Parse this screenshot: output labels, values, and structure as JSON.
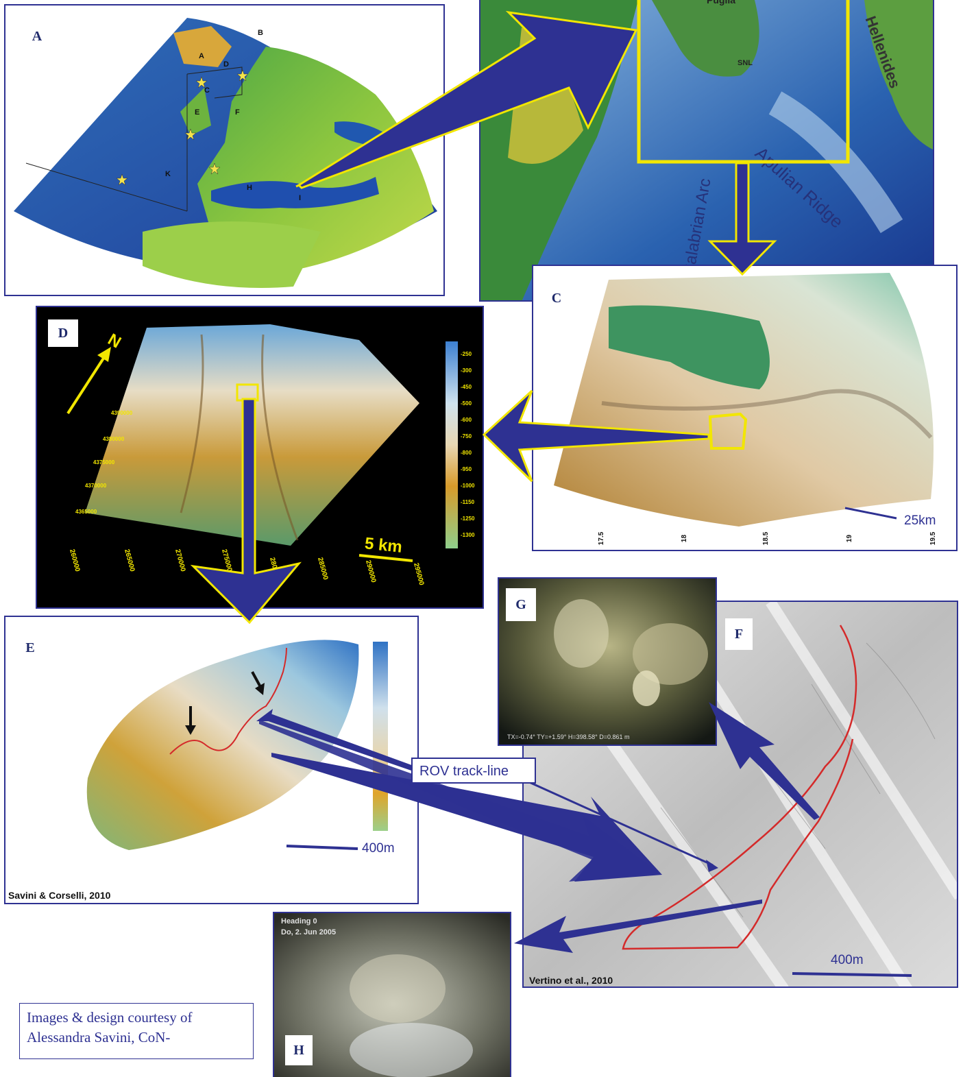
{
  "panels": {
    "a": {
      "letter": "A",
      "regions": [
        "A",
        "B",
        "C",
        "D",
        "E",
        "F",
        "H",
        "I",
        "K"
      ]
    },
    "b": {
      "labels": [
        "Puglia",
        "SNL",
        "Apulian Ridge",
        "Hellenides",
        "Calabrian Arc"
      ]
    },
    "c": {
      "letter": "C",
      "scale": "25km",
      "ticks": [
        "17.5",
        "18",
        "18.5",
        "19",
        "19.5"
      ]
    },
    "d": {
      "letter": "D",
      "north": "N",
      "scale": "5 km",
      "colorbar": [
        "-250",
        "-300",
        "-450",
        "-500",
        "-600",
        "-750",
        "-800",
        "-950",
        "-1000",
        "-1150",
        "-1250",
        "-1300"
      ],
      "xticks": [
        "260000",
        "265000",
        "270000",
        "275000",
        "280000",
        "285000",
        "290000",
        "295000"
      ],
      "yticks": [
        "4390000",
        "4380000",
        "4375000",
        "4370000",
        "4365000"
      ]
    },
    "e": {
      "letter": "E",
      "scale": "400m",
      "credit": "Savini & Corselli, 2010"
    },
    "f": {
      "letter": "F",
      "scale": "400m",
      "credit": "Vertino et al., 2010"
    },
    "g": {
      "letter": "G",
      "caption": "TX=-0.74°  TY=+1.59°  H=398.58°    D=0.861 m"
    },
    "h": {
      "letter": "H",
      "line1": "Heading 0",
      "line2": "Do, 2. Jun 2005"
    }
  },
  "callout": {
    "label": "ROV track-line"
  },
  "credit": {
    "line1": "Images & design courtesy of",
    "line2": "Alessandra Savini, CoN-"
  },
  "colors": {
    "frame": "#2e3192",
    "highlight": "#f2e600",
    "track": "#d42a2a"
  }
}
